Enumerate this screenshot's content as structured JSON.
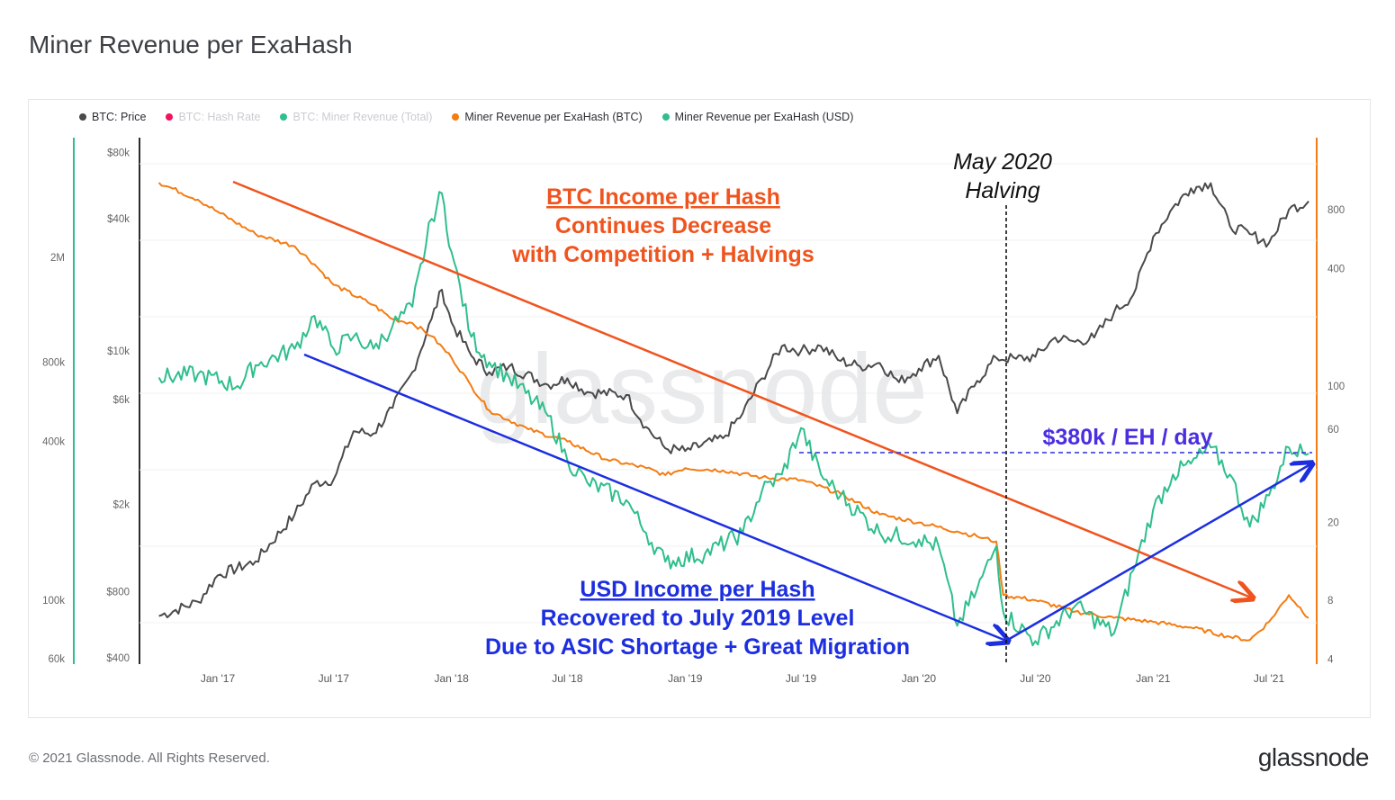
{
  "title": "Miner Revenue per ExaHash",
  "footer": {
    "copyright": "© 2021 Glassnode. All Rights Reserved.",
    "logo": "glassnode"
  },
  "watermark": "glassnode",
  "legend": [
    {
      "label": "BTC: Price",
      "color": "#4a4a4a",
      "muted": false
    },
    {
      "label": "BTC: Hash Rate",
      "color": "#f2125f",
      "muted": true
    },
    {
      "label": "BTC: Miner Revenue (Total)",
      "color": "#2fbf8b",
      "muted": true
    },
    {
      "label": "Miner Revenue per ExaHash (BTC)",
      "color": "#f47c12",
      "muted": false
    },
    {
      "label": "Miner Revenue per ExaHash (USD)",
      "color": "#2fbf8b",
      "muted": false
    }
  ],
  "annotations": {
    "btc_headline": [
      "BTC Income per Hash",
      "Continues Decrease",
      "with Competition + Halvings"
    ],
    "usd_headline": [
      "USD Income per Hash",
      "Recovered to July 2019 Level",
      "Due to ASIC Shortage + Great Migration"
    ],
    "halving": [
      "May 2020",
      "Halving"
    ],
    "level": "$380k / EH / day"
  },
  "chart_data": {
    "type": "line",
    "x_ticks": [
      "Jan '17",
      "Jul '17",
      "Jan '18",
      "Jul '18",
      "Jan '19",
      "Jul '19",
      "Jan '20",
      "Jul '20",
      "Jan '21",
      "Jul '21"
    ],
    "y_price_ticks": [
      "$80k",
      "$40k",
      "$10k",
      "$6k",
      "$2k",
      "$800",
      "$400"
    ],
    "y_usd_ticks": [
      "2M",
      "800k",
      "400k",
      "100k",
      "60k"
    ],
    "y_btc_ticks": [
      "800",
      "400",
      "100",
      "60",
      "20",
      "8",
      "4"
    ],
    "series": [
      {
        "name": "BTC: Price",
        "color": "#4a4a4a",
        "x": [
          "2016-10",
          "2016-12",
          "2017-01",
          "2017-03",
          "2017-05",
          "2017-06",
          "2017-07",
          "2017-08",
          "2017-09",
          "2017-10",
          "2017-11",
          "2017-12",
          "2017-12-17",
          "2018-01",
          "2018-02",
          "2018-03",
          "2018-04",
          "2018-06",
          "2018-07",
          "2018-08",
          "2018-10",
          "2018-11",
          "2018-12",
          "2019-01",
          "2019-03",
          "2019-04",
          "2019-05",
          "2019-06",
          "2019-07",
          "2019-08",
          "2019-09",
          "2019-10",
          "2019-11",
          "2019-12",
          "2020-01",
          "2020-02",
          "2020-03",
          "2020-04",
          "2020-05",
          "2020-06",
          "2020-07",
          "2020-08",
          "2020-09",
          "2020-10",
          "2020-11",
          "2020-12",
          "2021-01",
          "2021-02",
          "2021-03",
          "2021-04",
          "2021-05",
          "2021-06",
          "2021-07",
          "2021-08",
          "2021-09"
        ],
        "y": [
          620,
          720,
          950,
          1100,
          1800,
          2500,
          2600,
          4300,
          4200,
          5500,
          8000,
          14000,
          19000,
          13500,
          9500,
          8000,
          8500,
          7000,
          7500,
          6500,
          6300,
          4500,
          3600,
          3500,
          4000,
          5200,
          7500,
          10500,
          10000,
          10500,
          9000,
          8500,
          8800,
          7200,
          8300,
          9500,
          5200,
          7300,
          9300,
          9200,
          9400,
          11500,
          11000,
          11500,
          15000,
          18000,
          33000,
          45000,
          55000,
          58000,
          37000,
          34000,
          31000,
          44000,
          48000
        ]
      },
      {
        "name": "Miner Revenue per ExaHash (BTC)",
        "color": "#f47c12",
        "x": [
          "2016-10",
          "2016-12",
          "2017-01",
          "2017-03",
          "2017-05",
          "2017-06",
          "2017-07",
          "2017-09",
          "2017-10",
          "2017-11",
          "2017-12",
          "2018-01",
          "2018-02",
          "2018-03",
          "2018-05",
          "2018-07",
          "2018-09",
          "2018-11",
          "2018-12",
          "2019-01",
          "2019-03",
          "2019-05",
          "2019-07",
          "2019-09",
          "2019-11",
          "2020-01",
          "2020-03",
          "2020-04",
          "2020-05",
          "2020-05-12",
          "2020-07",
          "2020-09",
          "2020-11",
          "2021-01",
          "2021-03",
          "2021-05",
          "2021-06",
          "2021-07",
          "2021-08",
          "2021-09"
        ],
        "y": [
          1100,
          900,
          780,
          600,
          520,
          420,
          330,
          260,
          220,
          210,
          180,
          140,
          100,
          75,
          60,
          52,
          42,
          38,
          35,
          38,
          37,
          34,
          33,
          28,
          22,
          20,
          18,
          17,
          16,
          8.5,
          8.0,
          7.0,
          6.5,
          6.2,
          5.8,
          5.2,
          5.0,
          6.2,
          8.5,
          6.5
        ]
      },
      {
        "name": "Miner Revenue per ExaHash (USD)",
        "color": "#2fbf8b",
        "x": [
          "2016-10",
          "2016-12",
          "2017-02",
          "2017-03",
          "2017-05",
          "2017-06",
          "2017-07",
          "2017-08",
          "2017-09",
          "2017-10",
          "2017-11",
          "2017-12",
          "2017-12-17",
          "2018-01",
          "2018-02",
          "2018-03",
          "2018-04",
          "2018-06",
          "2018-07",
          "2018-08",
          "2018-10",
          "2018-11",
          "2018-12",
          "2019-02",
          "2019-04",
          "2019-05",
          "2019-06",
          "2019-07",
          "2019-08",
          "2019-09",
          "2019-11",
          "2020-01",
          "2020-02",
          "2020-03",
          "2020-04",
          "2020-05",
          "2020-05-12",
          "2020-07",
          "2020-09",
          "2020-11",
          "2020-12",
          "2021-01",
          "2021-02",
          "2021-03",
          "2021-04",
          "2021-05",
          "2021-06",
          "2021-07",
          "2021-08",
          "2021-09"
        ],
        "y": [
          700000,
          720000,
          650000,
          780000,
          900000,
          1200000,
          900000,
          1000000,
          900000,
          1100000,
          1300000,
          2800000,
          3500000,
          2100000,
          1000000,
          800000,
          700000,
          500000,
          340000,
          280000,
          240000,
          180000,
          140000,
          150000,
          180000,
          260000,
          300000,
          450000,
          300000,
          250000,
          180000,
          170000,
          160000,
          80000,
          110000,
          160000,
          90000,
          70000,
          95000,
          75000,
          130000,
          220000,
          300000,
          330000,
          380000,
          300000,
          190000,
          250000,
          380000,
          360000
        ]
      }
    ]
  }
}
